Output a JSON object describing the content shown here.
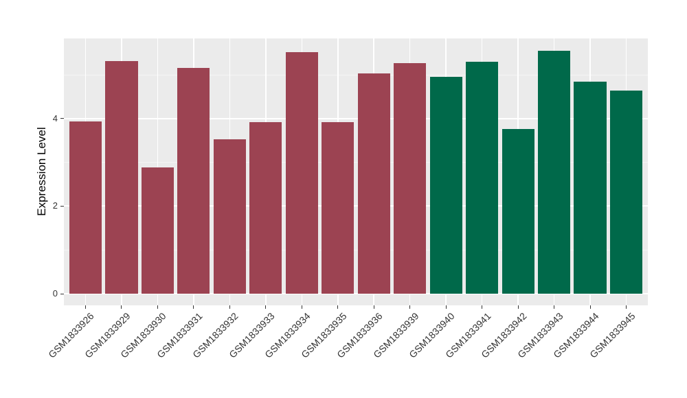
{
  "figure": {
    "background": "#FFFFFF",
    "panel_background": "#EBEBEB",
    "gridline_color": "#FFFFFF",
    "axis_text_color": "#333333",
    "axis_title_color": "#000000"
  },
  "chart_data": {
    "type": "bar",
    "title": "",
    "xlabel": "",
    "ylabel": "Expression Level",
    "legend_position": "none",
    "grid": "on",
    "orientation": "vertical",
    "bar_width_fraction": 0.9,
    "categories": [
      "GSM1833926",
      "GSM1833929",
      "GSM1833930",
      "GSM1833931",
      "GSM1833932",
      "GSM1833933",
      "GSM1833934",
      "GSM1833935",
      "GSM1833936",
      "GSM1833939",
      "GSM1833940",
      "GSM1833941",
      "GSM1833942",
      "GSM1833943",
      "GSM1833944",
      "GSM1833945"
    ],
    "values": [
      3.93,
      5.31,
      2.88,
      5.15,
      3.52,
      3.92,
      5.51,
      3.92,
      5.03,
      5.26,
      4.95,
      5.29,
      3.75,
      5.54,
      4.84,
      4.63
    ],
    "bar_groups": [
      "group1",
      "group1",
      "group1",
      "group1",
      "group1",
      "group1",
      "group1",
      "group1",
      "group1",
      "group1",
      "group2",
      "group2",
      "group2",
      "group2",
      "group2",
      "group2"
    ],
    "group_colors": {
      "group1": "#9C4352",
      "group2": "#00694A"
    },
    "ylim": [
      0,
      5.82
    ],
    "yticks": [
      0,
      2,
      4
    ],
    "ytick_labels": [
      "0",
      "2",
      "4"
    ],
    "minor_yticks": [
      1,
      3,
      5
    ]
  }
}
